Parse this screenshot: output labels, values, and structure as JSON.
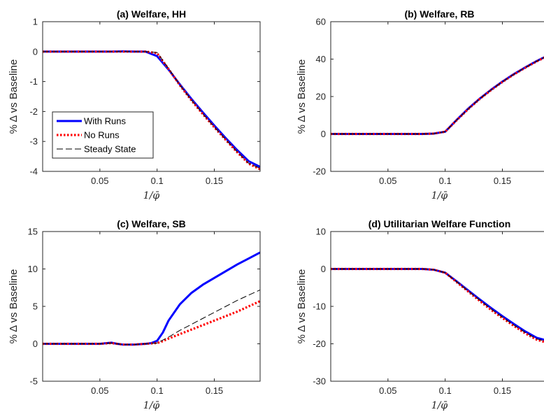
{
  "chart_data": [
    {
      "type": "line",
      "title": "(a) Welfare, HH",
      "xlabel": "1/φ̄",
      "ylabel": "% Δ vs Baseline",
      "xlim": [
        0.0,
        0.19
      ],
      "ylim": [
        -4,
        1
      ],
      "xticks": [
        "0.05",
        "0.1",
        "0.15"
      ],
      "yticks": [
        "1",
        "0",
        "-1",
        "-2",
        "-3",
        "-4"
      ],
      "x": [
        0.0,
        0.02,
        0.04,
        0.06,
        0.07,
        0.08,
        0.09,
        0.1,
        0.11,
        0.12,
        0.13,
        0.14,
        0.15,
        0.16,
        0.17,
        0.18,
        0.19
      ],
      "series": [
        {
          "name": "With Runs",
          "color": "#0000ff",
          "style": "solid",
          "values": [
            0,
            0,
            0,
            0,
            0.01,
            0,
            0,
            -0.15,
            -0.6,
            -1.1,
            -1.58,
            -2.03,
            -2.47,
            -2.89,
            -3.29,
            -3.66,
            -3.85
          ]
        },
        {
          "name": "No Runs",
          "color": "#ff0000",
          "style": "dotted",
          "values": [
            0,
            0,
            0,
            0,
            0,
            0,
            0,
            -0.05,
            -0.58,
            -1.13,
            -1.63,
            -2.09,
            -2.53,
            -2.95,
            -3.36,
            -3.74,
            -3.93
          ]
        },
        {
          "name": "Steady State",
          "color": "#000000",
          "style": "dashed",
          "values": [
            0,
            0,
            0,
            0,
            0,
            0,
            0,
            -0.03,
            -0.56,
            -1.12,
            -1.62,
            -2.08,
            -2.52,
            -2.94,
            -3.35,
            -3.73,
            -3.9
          ]
        }
      ],
      "legend": {
        "position": "lower-left",
        "entries": [
          "With Runs",
          "No Runs",
          "Steady State"
        ]
      }
    },
    {
      "type": "line",
      "title": "(b) Welfare, RB",
      "xlabel": "1/φ̄",
      "ylabel": "% Δ vs Baseline",
      "xlim": [
        0.0,
        0.19
      ],
      "ylim": [
        -20,
        60
      ],
      "xticks": [
        "0.05",
        "0.1",
        "0.15"
      ],
      "yticks": [
        "60",
        "40",
        "20",
        "0",
        "-20"
      ],
      "x": [
        0.0,
        0.02,
        0.04,
        0.06,
        0.08,
        0.09,
        0.1,
        0.11,
        0.12,
        0.13,
        0.14,
        0.15,
        0.16,
        0.17,
        0.18,
        0.19
      ],
      "series": [
        {
          "name": "With Runs",
          "color": "#0000ff",
          "style": "solid",
          "values": [
            0,
            0,
            0,
            0,
            0,
            0.2,
            1.2,
            7.5,
            13.5,
            18.8,
            23.6,
            28,
            32,
            35.6,
            39,
            42
          ]
        },
        {
          "name": "No Runs",
          "color": "#ff0000",
          "style": "dotted",
          "values": [
            0,
            0,
            0,
            0,
            0,
            0.2,
            1.2,
            7.3,
            13.2,
            18.6,
            23.4,
            27.8,
            31.8,
            35.4,
            38.8,
            41.8
          ]
        },
        {
          "name": "Steady State",
          "color": "#000000",
          "style": "dashed",
          "values": [
            0,
            0,
            0,
            0,
            0,
            0.2,
            1.2,
            7.4,
            13.3,
            18.7,
            23.5,
            27.9,
            31.9,
            35.5,
            38.9,
            41.9
          ]
        }
      ]
    },
    {
      "type": "line",
      "title": "(c) Welfare, SB",
      "xlabel": "1/φ̄",
      "ylabel": "% Δ vs Baseline",
      "xlim": [
        0.0,
        0.19
      ],
      "ylim": [
        -5,
        15
      ],
      "xticks": [
        "0.05",
        "0.1",
        "0.15"
      ],
      "yticks": [
        "15",
        "10",
        "5",
        "0",
        "-5"
      ],
      "x": [
        0.0,
        0.02,
        0.04,
        0.05,
        0.06,
        0.065,
        0.07,
        0.08,
        0.09,
        0.095,
        0.1,
        0.105,
        0.11,
        0.12,
        0.13,
        0.14,
        0.15,
        0.16,
        0.17,
        0.18,
        0.19
      ],
      "series": [
        {
          "name": "With Runs",
          "color": "#0000ff",
          "style": "solid",
          "values": [
            0,
            0,
            0,
            0,
            0.15,
            0,
            -0.1,
            -0.1,
            0,
            0.1,
            0.4,
            1.5,
            3.1,
            5.3,
            6.8,
            7.9,
            8.8,
            9.7,
            10.6,
            11.4,
            12.2
          ]
        },
        {
          "name": "No Runs",
          "color": "#ff0000",
          "style": "dotted",
          "values": [
            0,
            0,
            0,
            0,
            0.1,
            0,
            -0.1,
            -0.1,
            0,
            0.05,
            0.1,
            0.35,
            0.7,
            1.3,
            1.9,
            2.5,
            3.1,
            3.7,
            4.3,
            5,
            5.7
          ]
        },
        {
          "name": "Steady State",
          "color": "#000000",
          "style": "dashed",
          "values": [
            0,
            0,
            0,
            0,
            0.1,
            0,
            -0.1,
            -0.1,
            0,
            0.05,
            0.1,
            0.5,
            0.9,
            1.8,
            2.6,
            3.4,
            4.2,
            5,
            5.8,
            6.5,
            7.2
          ]
        }
      ]
    },
    {
      "type": "line",
      "title": "(d) Utilitarian Welfare Function",
      "xlabel": "1/φ̄",
      "ylabel": "% Δ vs Baseline",
      "xlim": [
        0.0,
        0.19
      ],
      "ylim": [
        -30,
        10
      ],
      "xticks": [
        "0.05",
        "0.1",
        "0.15"
      ],
      "yticks": [
        "10",
        "0",
        "-10",
        "-20",
        "-30"
      ],
      "x": [
        0.0,
        0.02,
        0.04,
        0.06,
        0.08,
        0.09,
        0.1,
        0.11,
        0.12,
        0.13,
        0.14,
        0.15,
        0.16,
        0.17,
        0.18,
        0.19
      ],
      "series": [
        {
          "name": "With Runs",
          "color": "#0000ff",
          "style": "solid",
          "values": [
            0,
            0,
            0,
            0,
            0,
            -0.2,
            -1,
            -3.3,
            -5.7,
            -8.1,
            -10.4,
            -12.6,
            -14.7,
            -16.7,
            -18.4,
            -19.2
          ]
        },
        {
          "name": "No Runs",
          "color": "#ff0000",
          "style": "dotted",
          "values": [
            0,
            0,
            0,
            0,
            0,
            -0.2,
            -1,
            -3.5,
            -6,
            -8.5,
            -10.9,
            -13.1,
            -15.2,
            -17.2,
            -18.9,
            -19.8
          ]
        },
        {
          "name": "Steady State",
          "color": "#000000",
          "style": "dashed",
          "values": [
            0,
            0,
            0,
            0,
            0,
            -0.2,
            -1,
            -3.4,
            -5.9,
            -8.3,
            -10.7,
            -12.9,
            -15,
            -17,
            -18.7,
            -19.5
          ]
        }
      ]
    }
  ]
}
